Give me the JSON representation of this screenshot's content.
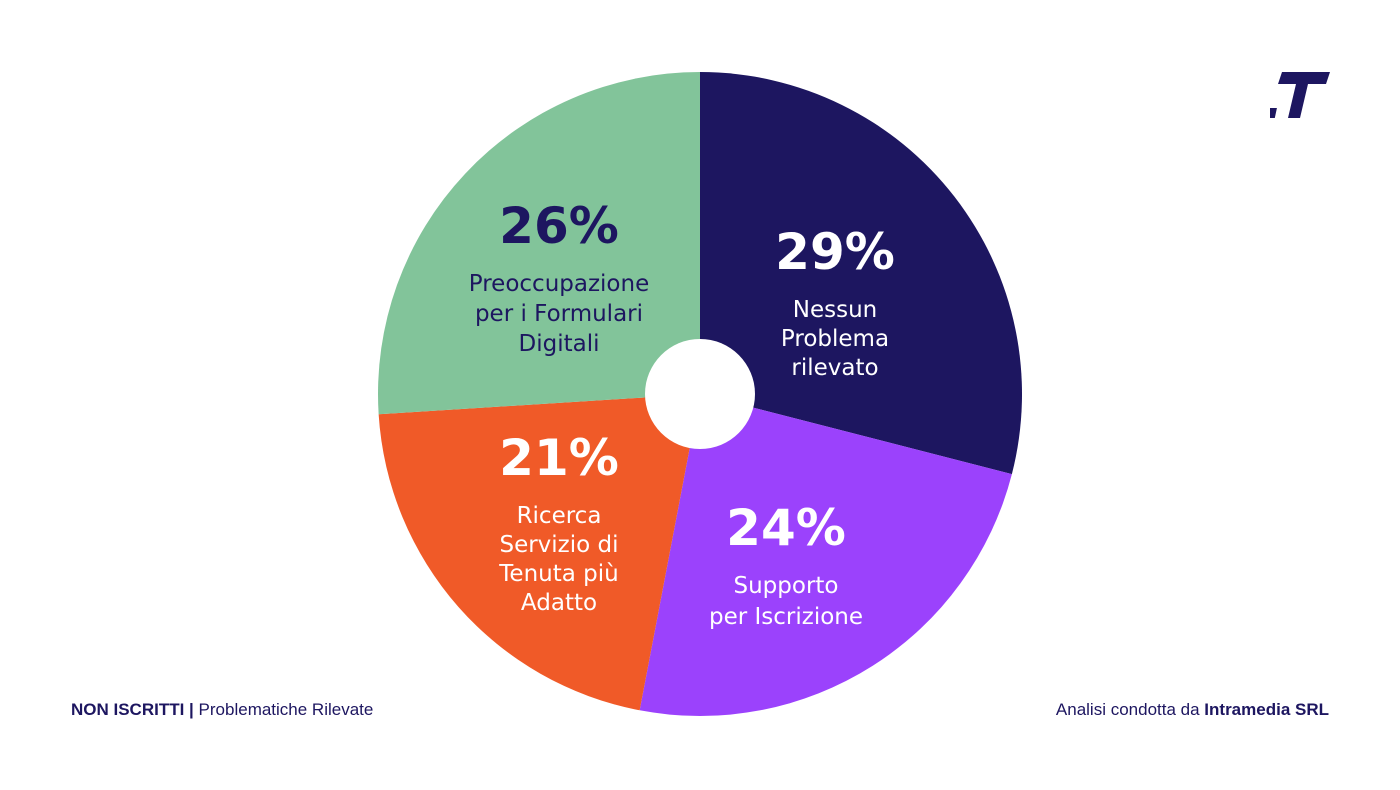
{
  "chart_data": {
    "type": "pie",
    "slices": [
      {
        "value": 29,
        "pct_label": "29%",
        "label_lines": [
          "Nessun",
          "Problema",
          "rilevato"
        ],
        "color": "#1d1660",
        "text_color": "#ffffff"
      },
      {
        "value": 24,
        "pct_label": "24%",
        "label_lines": [
          "Supporto",
          "per Iscrizione"
        ],
        "color": "#9b42fc",
        "text_color": "#ffffff"
      },
      {
        "value": 21,
        "pct_label": "21%",
        "label_lines": [
          "Ricerca",
          "Servizio di",
          "Tenuta più",
          "Adatto"
        ],
        "color": "#f05a28",
        "text_color": "#ffffff"
      },
      {
        "value": 26,
        "pct_label": "26%",
        "label_lines": [
          "Preoccupazione",
          "per i Formulari",
          "Digitali"
        ],
        "color": "#82c49a",
        "text_color": "#1d1660"
      }
    ],
    "start": "12 o'clock",
    "direction": "clockwise"
  },
  "footer": {
    "left_strong": "NON ISCRITTI |",
    "left_text": "Problematiche Rilevate",
    "right_text": "Analisi condotta da",
    "right_strong": "Intramedia SRL"
  },
  "logo": {
    "icon": "brand-t-logo-icon",
    "color": "#1d1660"
  }
}
